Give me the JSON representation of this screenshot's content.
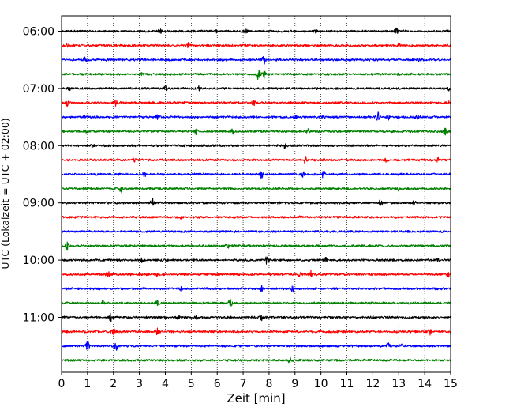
{
  "chart_data": {
    "type": "line",
    "title": "",
    "xlabel": "Zeit  [min]",
    "ylabel": "UTC (Lokalzeit = UTC + 02:00)",
    "xlim": [
      0,
      15
    ],
    "x_ticks": [
      0,
      1,
      2,
      3,
      4,
      5,
      6,
      7,
      8,
      9,
      10,
      11,
      12,
      13,
      14,
      15
    ],
    "y_tick_labels": [
      "06:00",
      "07:00",
      "08:00",
      "09:00",
      "10:00",
      "11:00"
    ],
    "traces_per_hour": 4,
    "grid": "vertical dotted at each minute",
    "trace_colors": [
      "#000000",
      "#ff0000",
      "#0000ff",
      "#008000"
    ],
    "series": [
      {
        "start": "06:00",
        "color": "#000000",
        "events": [
          [
            3.8,
            0.7
          ],
          [
            6.0,
            0.3
          ],
          [
            7.1,
            0.6
          ],
          [
            9.8,
            0.3
          ],
          [
            12.9,
            0.8
          ]
        ]
      },
      {
        "start": "06:15",
        "color": "#ff0000",
        "events": [
          [
            0.2,
            0.3
          ],
          [
            4.9,
            0.6
          ],
          [
            13.0,
            0.3
          ]
        ]
      },
      {
        "start": "06:30",
        "color": "#0000ff",
        "events": [
          [
            0.9,
            0.5
          ],
          [
            7.8,
            0.9
          ],
          [
            13.8,
            0.3
          ]
        ]
      },
      {
        "start": "06:45",
        "color": "#008000",
        "events": [
          [
            3.1,
            0.2
          ],
          [
            7.6,
            1.4
          ],
          [
            7.8,
            0.9
          ]
        ]
      },
      {
        "start": "07:00",
        "color": "#000000",
        "events": [
          [
            0.3,
            0.3
          ],
          [
            4.0,
            0.6
          ],
          [
            5.3,
            0.4
          ],
          [
            14.9,
            0.5
          ]
        ]
      },
      {
        "start": "07:15",
        "color": "#ff0000",
        "events": [
          [
            0.2,
            0.9
          ],
          [
            2.1,
            0.6
          ],
          [
            7.4,
            0.7
          ],
          [
            14.9,
            0.3
          ]
        ]
      },
      {
        "start": "07:30",
        "color": "#0000ff",
        "events": [
          [
            0.9,
            0.3
          ],
          [
            3.7,
            0.7
          ],
          [
            9.0,
            0.4
          ],
          [
            10.1,
            0.4
          ],
          [
            12.2,
            1.1
          ],
          [
            12.6,
            0.6
          ],
          [
            13.7,
            0.4
          ]
        ]
      },
      {
        "start": "07:45",
        "color": "#008000",
        "events": [
          [
            0.9,
            0.4
          ],
          [
            5.2,
            0.6
          ],
          [
            6.6,
            1.0
          ],
          [
            9.5,
            0.4
          ],
          [
            14.8,
            0.9
          ]
        ]
      },
      {
        "start": "08:00",
        "color": "#000000",
        "events": [
          [
            1.2,
            0.3
          ],
          [
            8.6,
            0.5
          ]
        ]
      },
      {
        "start": "08:15",
        "color": "#ff0000",
        "events": [
          [
            2.8,
            0.5
          ],
          [
            9.4,
            0.7
          ],
          [
            12.5,
            0.4
          ],
          [
            14.5,
            0.5
          ]
        ]
      },
      {
        "start": "08:30",
        "color": "#0000ff",
        "events": [
          [
            3.2,
            0.5
          ],
          [
            7.7,
            0.9
          ],
          [
            9.3,
            0.6
          ],
          [
            10.1,
            0.8
          ]
        ]
      },
      {
        "start": "08:45",
        "color": "#008000",
        "events": [
          [
            0.9,
            0.3
          ],
          [
            2.3,
            1.0
          ],
          [
            13.0,
            0.5
          ]
        ]
      },
      {
        "start": "09:00",
        "color": "#000000",
        "events": [
          [
            3.5,
            0.9
          ],
          [
            12.3,
            0.7
          ],
          [
            13.6,
            0.7
          ]
        ]
      },
      {
        "start": "09:15",
        "color": "#ff0000",
        "events": [
          [
            4.6,
            0.3
          ],
          [
            9.2,
            0.2
          ]
        ]
      },
      {
        "start": "09:30",
        "color": "#0000ff",
        "events": []
      },
      {
        "start": "09:45",
        "color": "#008000",
        "events": [
          [
            0.2,
            0.9
          ],
          [
            6.4,
            0.5
          ]
        ]
      },
      {
        "start": "10:00",
        "color": "#000000",
        "events": [
          [
            3.1,
            0.5
          ],
          [
            7.9,
            0.8
          ],
          [
            10.2,
            0.5
          ],
          [
            14.5,
            0.3
          ]
        ]
      },
      {
        "start": "10:15",
        "color": "#ff0000",
        "events": [
          [
            1.8,
            0.8
          ],
          [
            3.7,
            0.5
          ],
          [
            9.2,
            0.6
          ],
          [
            9.6,
            0.9
          ],
          [
            14.9,
            0.5
          ]
        ]
      },
      {
        "start": "10:30",
        "color": "#0000ff",
        "events": [
          [
            4.6,
            0.4
          ],
          [
            7.7,
            0.7
          ],
          [
            8.9,
            0.8
          ]
        ]
      },
      {
        "start": "10:45",
        "color": "#008000",
        "events": [
          [
            1.6,
            0.6
          ],
          [
            3.7,
            0.5
          ],
          [
            6.5,
            0.8
          ]
        ]
      },
      {
        "start": "11:00",
        "color": "#000000",
        "events": [
          [
            1.9,
            0.8
          ],
          [
            4.5,
            0.4
          ],
          [
            5.2,
            0.4
          ],
          [
            7.7,
            0.6
          ],
          [
            12.0,
            0.3
          ]
        ]
      },
      {
        "start": "11:15",
        "color": "#ff0000",
        "events": [
          [
            2.0,
            0.8
          ],
          [
            3.7,
            0.7
          ],
          [
            14.2,
            0.6
          ]
        ]
      },
      {
        "start": "11:30",
        "color": "#0000ff",
        "events": [
          [
            1.0,
            1.0
          ],
          [
            2.1,
            1.0
          ],
          [
            12.6,
            0.6
          ],
          [
            13.1,
            0.4
          ]
        ]
      },
      {
        "start": "11:45",
        "color": "#008000",
        "events": [
          [
            8.8,
            0.5
          ]
        ]
      }
    ]
  }
}
